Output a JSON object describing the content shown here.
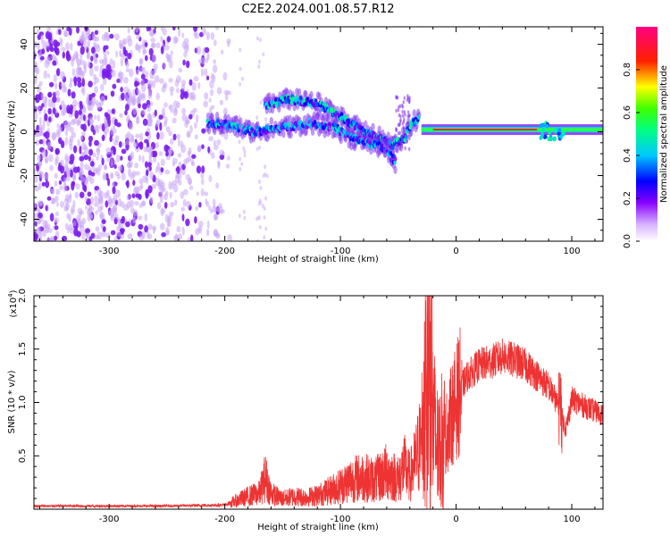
{
  "title": "C2E2.2024.001.08.57.R12",
  "chart_data": [
    {
      "type": "heatmap",
      "xlabel": "Height of straight line (km)",
      "ylabel": "Frequency (Hz)",
      "xlim": [
        -365,
        127
      ],
      "ylim": [
        -50,
        48
      ],
      "xticks": [
        "-300",
        "-200",
        "-100",
        "0",
        "100"
      ],
      "yticks": [
        "-40",
        "-20",
        "0",
        "20",
        "40"
      ],
      "grid": false,
      "colorbar": {
        "label": "Normalized spectral amplitude",
        "range": [
          0,
          1
        ],
        "ticks": [
          "0.0",
          "0.2",
          "0.4",
          "0.6",
          "0.8"
        ],
        "colormap": "white-violet-blue-cyan-green-yellow-red-magenta"
      },
      "features": [
        {
          "name": "noise",
          "x_range": [
            -365,
            -195
          ],
          "freq_range": [
            -50,
            48
          ],
          "amplitude": 0.05
        },
        {
          "name": "upper-branch",
          "points": [
            [
              -165,
              12
            ],
            [
              -145,
              15
            ],
            [
              -120,
              13
            ],
            [
              -100,
              7
            ],
            [
              -80,
              0
            ],
            [
              -65,
              -3
            ],
            [
              -55,
              -6
            ],
            [
              -45,
              -3
            ],
            [
              -38,
              4
            ],
            [
              -32,
              6
            ]
          ],
          "amplitude": 0.35
        },
        {
          "name": "lower-branch",
          "points": [
            [
              -215,
              4
            ],
            [
              -195,
              3
            ],
            [
              -175,
              0
            ],
            [
              -150,
              2
            ],
            [
              -125,
              4
            ],
            [
              -105,
              2
            ],
            [
              -90,
              -3
            ],
            [
              -75,
              -5
            ],
            [
              -65,
              -7
            ],
            [
              -58,
              -10
            ],
            [
              -52,
              -14
            ]
          ],
          "amplitude": 0.3
        },
        {
          "name": "carrier-line",
          "x_range": [
            -30,
            127
          ],
          "freq": 1,
          "amplitude": 0.9
        }
      ]
    },
    {
      "type": "line",
      "xlabel": "Height of straight line (km)",
      "ylabel": "SNR (10 * v/v)",
      "yscale_label": "(x10",
      "yscale_exp": "4",
      "yscale_close": ")",
      "xlim": [
        -365,
        127
      ],
      "ylim": [
        0,
        20000
      ],
      "xticks": [
        "-300",
        "-200",
        "-100",
        "0",
        "100"
      ],
      "yticks": [
        "0.5",
        "1.0",
        "1.5",
        "2.0"
      ],
      "grid": false,
      "color": "#ee3333",
      "series": [
        {
          "x": [
            -365,
            -300,
            -250,
            -200,
            -190,
            -180,
            -170,
            -165,
            -160,
            -155,
            -150,
            -140,
            -130,
            -120,
            -110,
            -100,
            -90,
            -80,
            -70,
            -60,
            -50,
            -45,
            -40,
            -35,
            -30,
            -25,
            -22,
            -20,
            -15,
            -10,
            -5,
            0,
            5,
            10,
            20,
            30,
            40,
            50,
            60,
            70,
            75,
            80,
            85,
            90,
            95,
            100,
            110,
            120,
            127
          ],
          "y": [
            300,
            300,
            300,
            400,
            800,
            1200,
            1500,
            3000,
            1500,
            1200,
            1000,
            1200,
            1100,
            1300,
            1700,
            2200,
            2800,
            3000,
            2700,
            3500,
            2800,
            4000,
            3000,
            4500,
            6500,
            11000,
            17000,
            8000,
            5000,
            6500,
            8500,
            10000,
            11500,
            12500,
            13500,
            13800,
            14300,
            14000,
            13500,
            12500,
            12000,
            11500,
            10500,
            9000,
            7500,
            10300,
            9700,
            9200,
            8800
          ]
        }
      ]
    }
  ]
}
